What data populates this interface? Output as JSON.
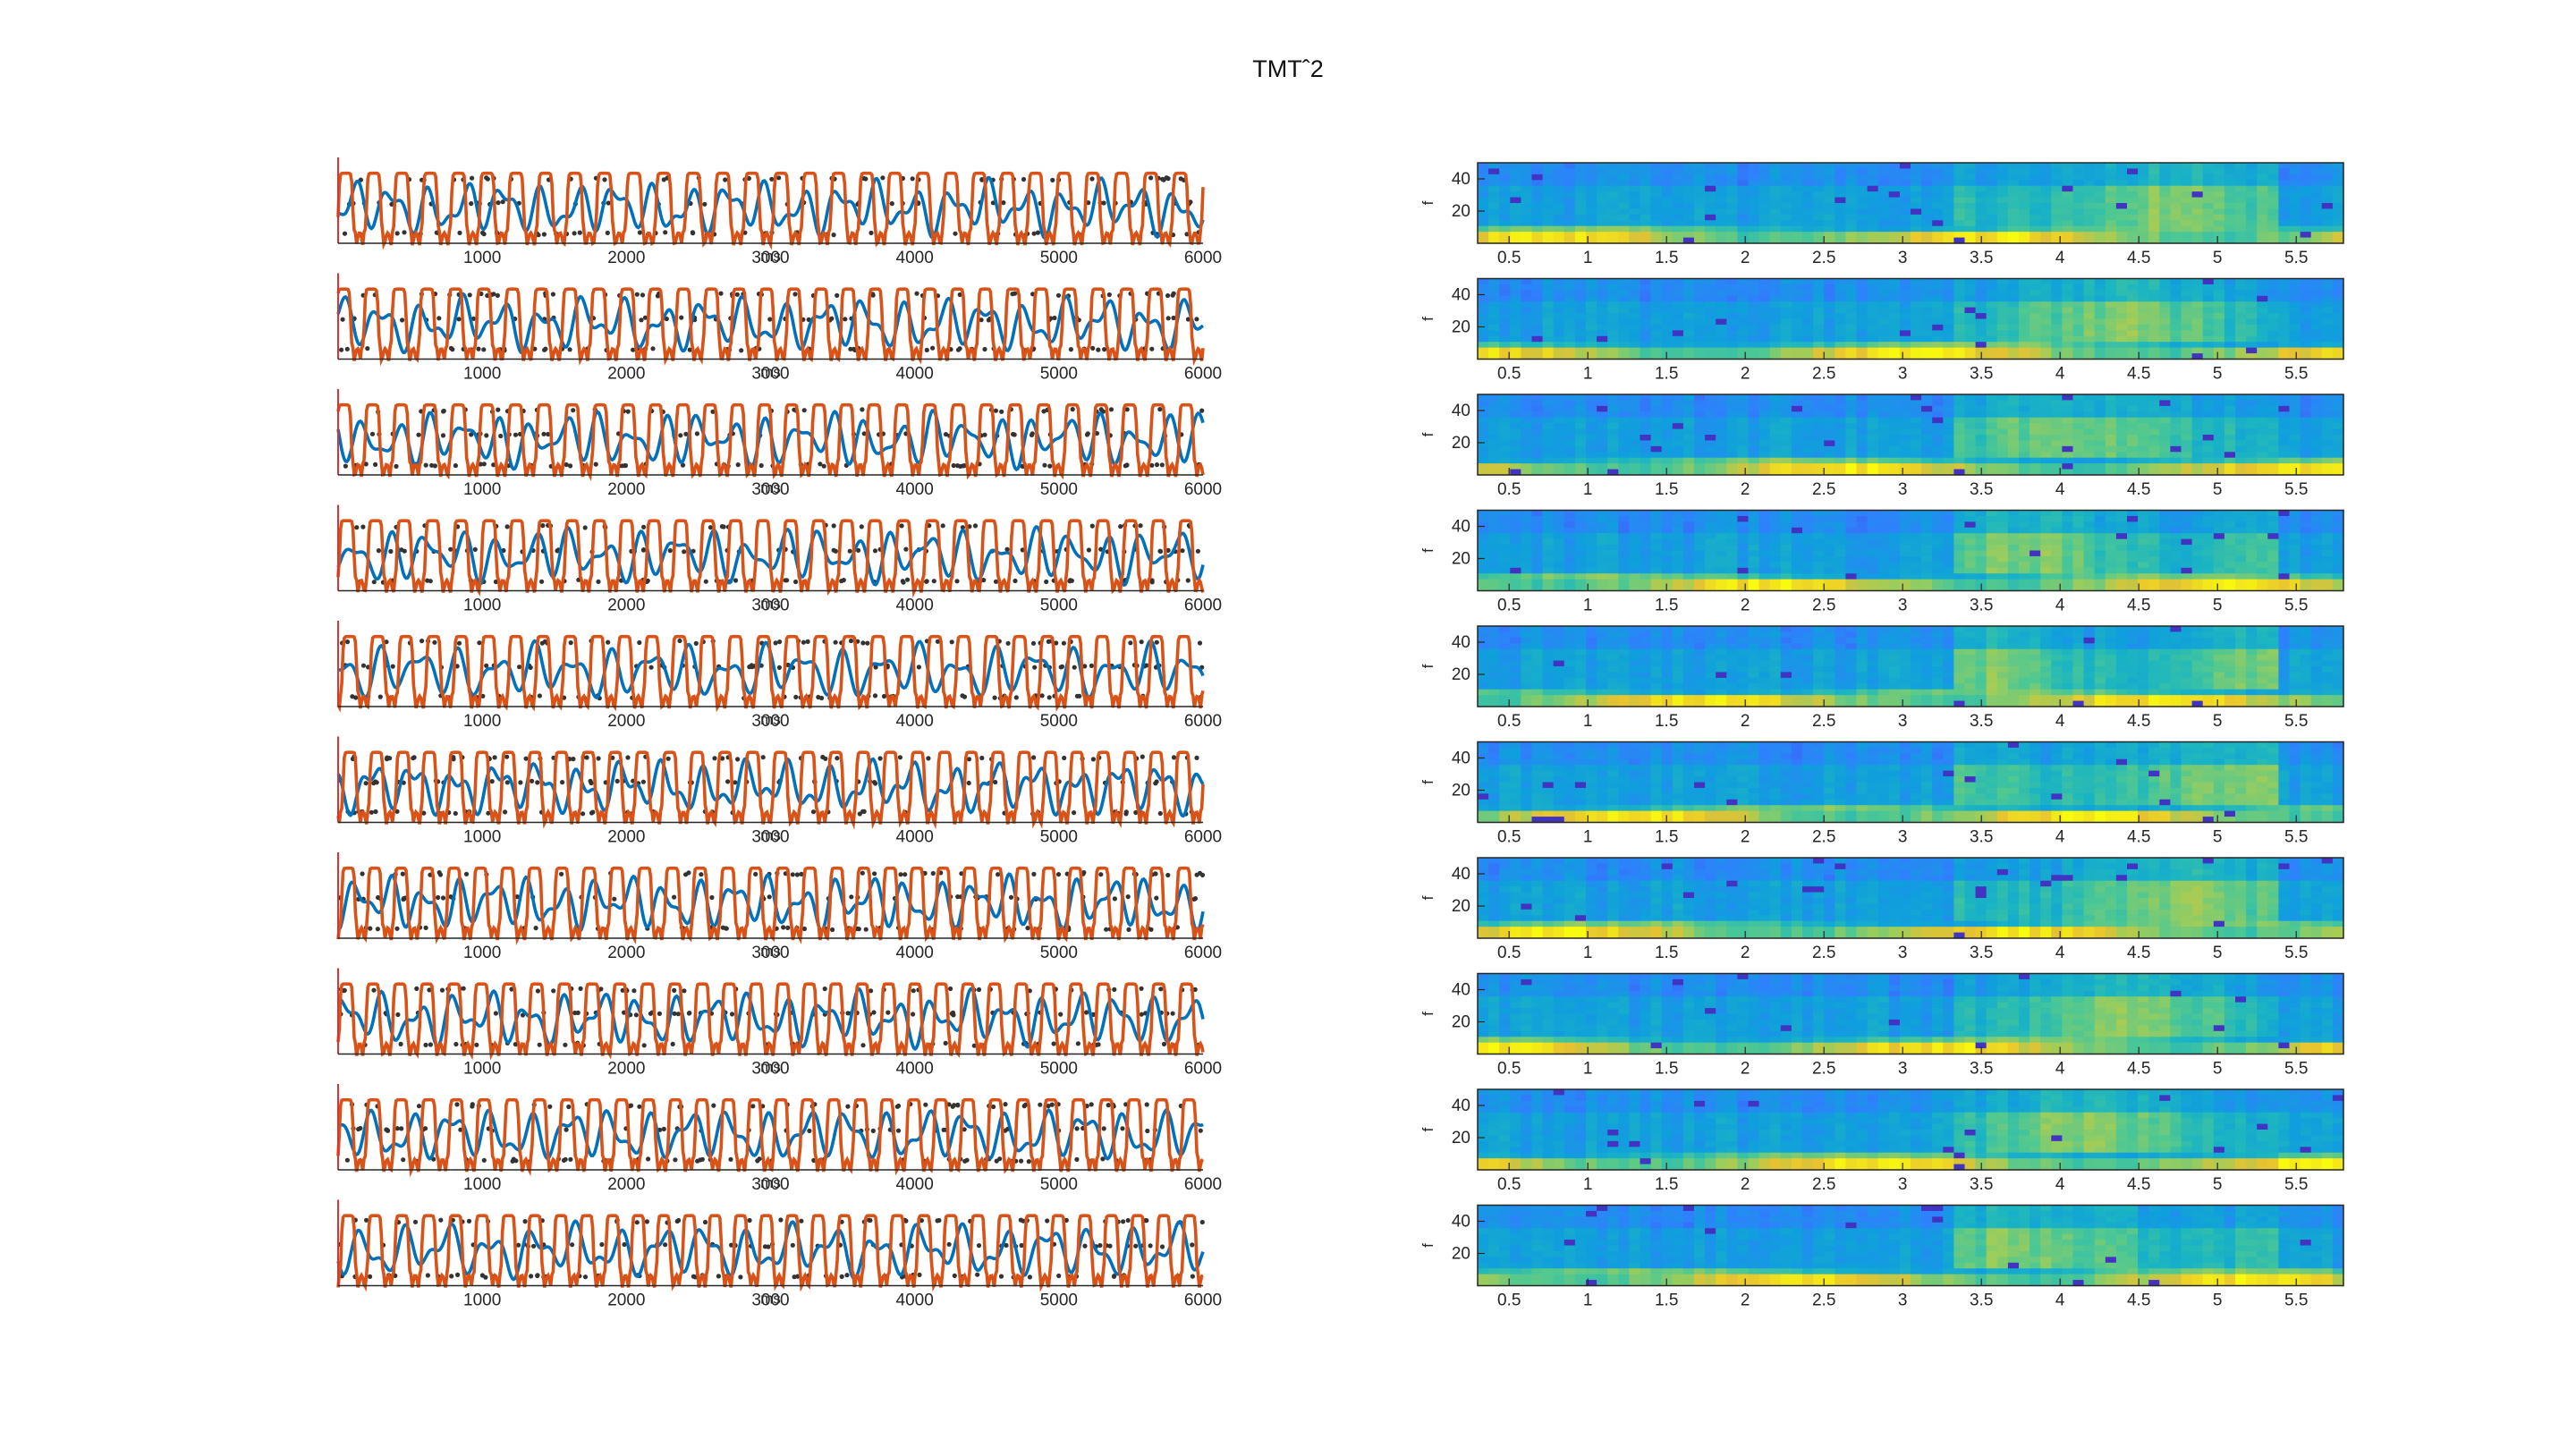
{
  "figure": {
    "title": "TMTˆ2"
  },
  "chart_data": [
    {
      "type": "line",
      "panel_group": "traces",
      "rows": 10,
      "x": {
        "label": "ms",
        "range": [
          0,
          6000
        ],
        "ticks": [
          1000,
          2000,
          3000,
          4000,
          5000,
          6000
        ]
      },
      "series": [
        {
          "color": "#0072BD",
          "style": "smooth oscillating line"
        },
        {
          "color": "#D95319",
          "style": "square-wave-like line"
        },
        {
          "color": "#333333",
          "style": "scattered dots at three discrete levels"
        }
      ],
      "y_levels_relative": [
        0.12,
        0.5,
        0.8
      ],
      "left_marker_color": "#E03030"
    },
    {
      "type": "heatmap",
      "panel_group": "spectrograms",
      "rows": 10,
      "x": {
        "range": [
          0.3,
          5.8
        ],
        "ticks": [
          0.5,
          1,
          1.5,
          2,
          2.5,
          3,
          3.5,
          4,
          4.5,
          5,
          5.5
        ]
      },
      "y": {
        "label": "f",
        "range": [
          0,
          50
        ],
        "ticks": [
          20,
          40
        ]
      },
      "colormap": "parula",
      "description_values": "low-frequency band (<10 Hz) high power; mid band elevated between ~3.3 s and ~5.3 s"
    }
  ]
}
